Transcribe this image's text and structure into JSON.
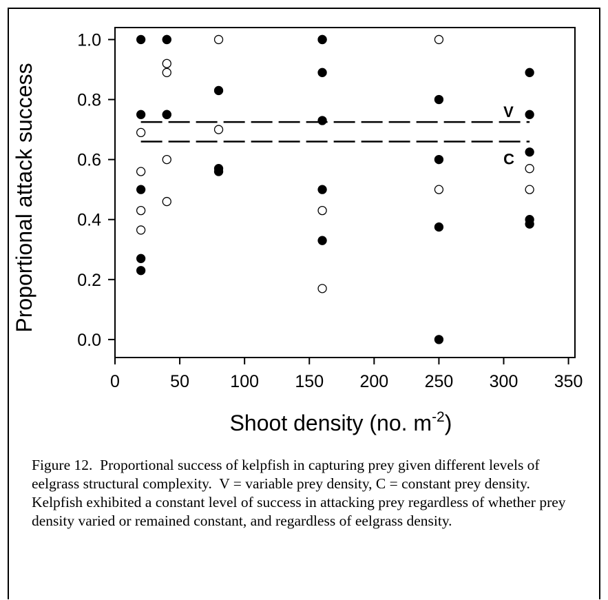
{
  "chart_data": {
    "type": "scatter",
    "ylabel": "Proportional attack success",
    "xlabel_text": "Shoot density (no. m",
    "xlabel_sup": "-2",
    "xlabel_close": ")",
    "xlim": [
      0,
      355
    ],
    "ylim": [
      -0.06,
      1.04
    ],
    "x_ticks": [
      0,
      50,
      100,
      150,
      200,
      250,
      300,
      350
    ],
    "y_ticks": [
      0.0,
      0.2,
      0.4,
      0.6,
      0.8,
      1.0
    ],
    "y_tick_labels": [
      "0.0",
      "0.2",
      "0.4",
      "0.6",
      "0.8",
      "1.0"
    ],
    "series": [
      {
        "marker": "filled",
        "points": [
          [
            20,
            1.0
          ],
          [
            20,
            0.75
          ],
          [
            20,
            0.5
          ],
          [
            20,
            0.27
          ],
          [
            20,
            0.23
          ],
          [
            40,
            1.0
          ],
          [
            40,
            1.0
          ],
          [
            40,
            0.75
          ],
          [
            40,
            0.75
          ],
          [
            80,
            0.83
          ],
          [
            80,
            0.57
          ],
          [
            80,
            0.56
          ],
          [
            160,
            1.0
          ],
          [
            160,
            1.0
          ],
          [
            160,
            0.89
          ],
          [
            160,
            0.73
          ],
          [
            160,
            0.5
          ],
          [
            160,
            0.33
          ],
          [
            250,
            0.8
          ],
          [
            250,
            0.6
          ],
          [
            250,
            0.375
          ],
          [
            250,
            0.0
          ],
          [
            320,
            0.89
          ],
          [
            320,
            0.75
          ],
          [
            320,
            0.625
          ],
          [
            320,
            0.4
          ],
          [
            320,
            0.385
          ]
        ]
      },
      {
        "marker": "open",
        "points": [
          [
            20,
            0.69
          ],
          [
            20,
            0.56
          ],
          [
            20,
            0.43
          ],
          [
            20,
            0.365
          ],
          [
            40,
            0.92
          ],
          [
            40,
            0.89
          ],
          [
            40,
            0.6
          ],
          [
            40,
            0.46
          ],
          [
            80,
            1.0
          ],
          [
            80,
            0.7
          ],
          [
            160,
            0.43
          ],
          [
            160,
            0.17
          ],
          [
            250,
            1.0
          ],
          [
            250,
            0.5
          ],
          [
            320,
            0.57
          ],
          [
            320,
            0.5
          ]
        ]
      }
    ],
    "reference_lines": [
      {
        "label": "V",
        "y": 0.725,
        "x_range": [
          20,
          320
        ],
        "style": "dashed"
      },
      {
        "label": "C",
        "y": 0.66,
        "x_range": [
          20,
          320
        ],
        "style": "dashed"
      }
    ]
  },
  "caption": "Figure 12.  Proportional success of kelpfish in capturing prey given different levels of eelgrass structural complexity.  V = variable prey density, C = constant prey density.  Kelpfish exhibited a constant level of success in attacking prey regardless of whether prey density varied or remained constant, and regardless of eelgrass density."
}
